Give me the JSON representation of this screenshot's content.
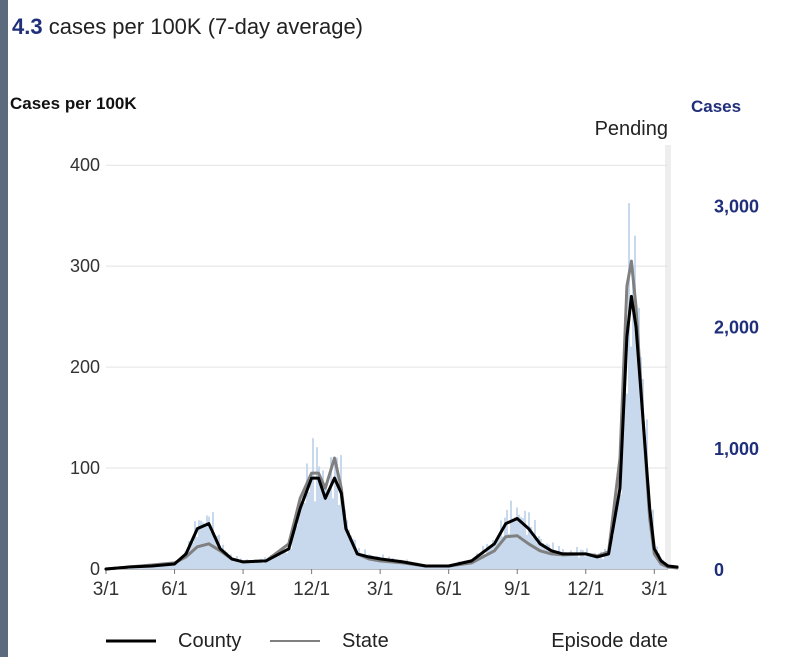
{
  "headline": {
    "value": "4.3",
    "text": "cases per 100K (7-day average)"
  },
  "chart_data": {
    "type": "line",
    "left_axis_label": "Cases per 100K",
    "right_axis_label": "Cases",
    "pending_label": "Pending",
    "xlabel": "Episode date",
    "x_ticks": [
      "3/1",
      "6/1",
      "9/1",
      "12/1",
      "3/1",
      "6/1",
      "9/1",
      "12/1",
      "3/1"
    ],
    "y_ticks_left": [
      "0",
      "100",
      "200",
      "300",
      "400"
    ],
    "y_ticks_right": [
      "0",
      "1,000",
      "2,000",
      "3,000"
    ],
    "ylim_left": [
      0,
      420
    ],
    "ylim_right": [
      0,
      3500
    ],
    "colors": {
      "county": "#000000",
      "state": "#808080",
      "daily_bars": "#c8d9ee",
      "right_axis": "#1f2f7a"
    },
    "series": [
      {
        "name": "County",
        "x_months": [
          0,
          1,
          2,
          3,
          3.5,
          4,
          4.5,
          5,
          5.5,
          6,
          7,
          8,
          8.5,
          9,
          9.3,
          9.6,
          10,
          10.3,
          10.5,
          11,
          11.5,
          12,
          13,
          14,
          15,
          16,
          17,
          17.5,
          18,
          18.5,
          19,
          19.5,
          20,
          21,
          21.5,
          22,
          22.5,
          22.8,
          23,
          23.2,
          23.5,
          23.8,
          24,
          24.3,
          24.6,
          25
        ],
        "values": [
          0,
          2,
          3,
          5,
          15,
          40,
          45,
          20,
          10,
          7,
          8,
          20,
          60,
          90,
          90,
          70,
          90,
          75,
          40,
          15,
          12,
          10,
          7,
          3,
          3,
          8,
          25,
          45,
          50,
          40,
          25,
          18,
          15,
          15,
          12,
          15,
          80,
          230,
          270,
          240,
          150,
          60,
          20,
          8,
          3,
          2
        ]
      },
      {
        "name": "State",
        "x_months": [
          0,
          1,
          2,
          3,
          3.5,
          4,
          4.5,
          5,
          5.5,
          6,
          7,
          8,
          8.5,
          9,
          9.3,
          9.6,
          10,
          10.3,
          10.5,
          11,
          11.5,
          12,
          13,
          14,
          15,
          16,
          17,
          17.5,
          18,
          18.5,
          19,
          19.5,
          20,
          21,
          21.5,
          22,
          22.5,
          22.8,
          23,
          23.2,
          23.5,
          23.8,
          24,
          24.3,
          24.6,
          25
        ],
        "values": [
          0,
          2,
          4,
          6,
          12,
          22,
          25,
          18,
          10,
          7,
          8,
          25,
          70,
          95,
          95,
          80,
          110,
          80,
          40,
          15,
          10,
          8,
          6,
          3,
          3,
          6,
          18,
          32,
          33,
          25,
          18,
          15,
          14,
          15,
          13,
          17,
          110,
          280,
          305,
          260,
          150,
          50,
          15,
          5,
          2,
          1
        ]
      }
    ],
    "legend": [
      "County",
      "State"
    ]
  }
}
